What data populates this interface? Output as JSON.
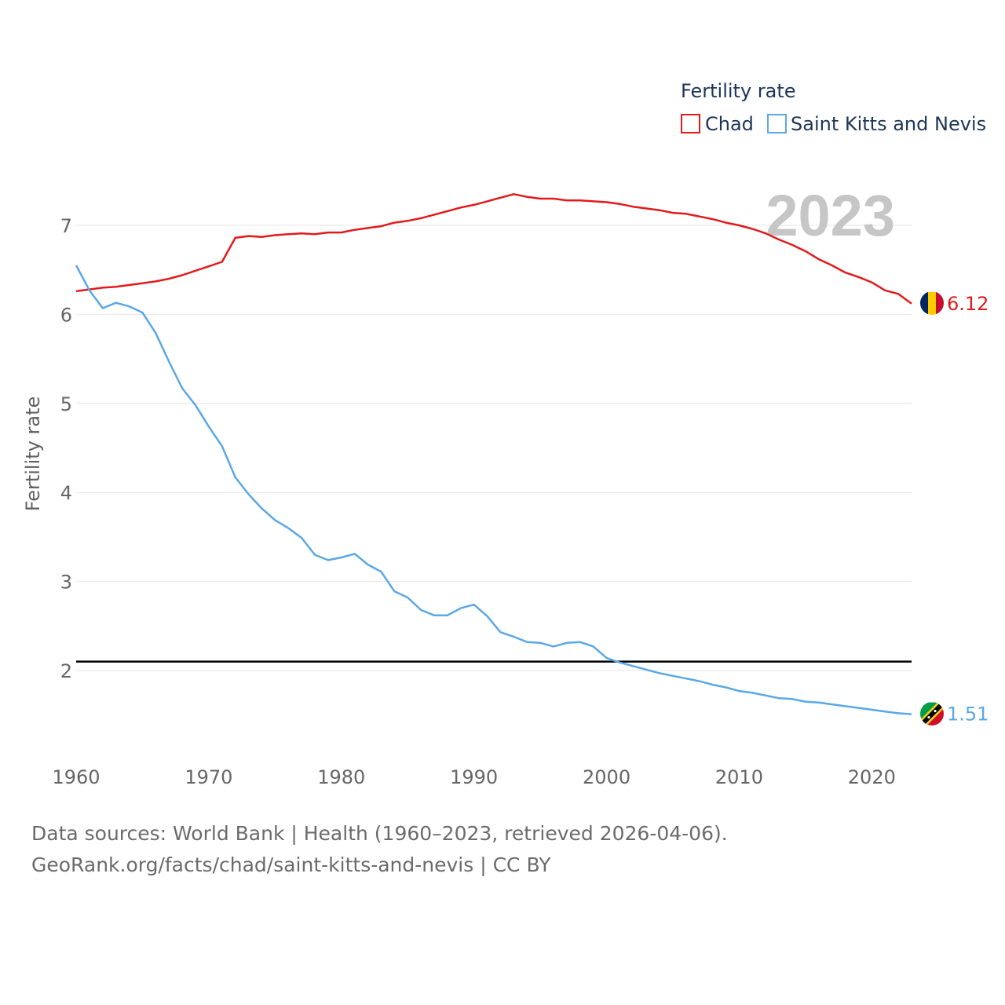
{
  "chart_data": {
    "type": "line",
    "legend_title": "Fertility rate",
    "ylabel": "Fertility rate",
    "xlabel": "",
    "year_label": "2023",
    "x_range": [
      1960,
      2023
    ],
    "ylim": [
      1.0,
      7.6
    ],
    "y_ticks": [
      2,
      3,
      4,
      5,
      6,
      7
    ],
    "y_tick_labels": [
      "2",
      "3",
      "4",
      "5",
      "6",
      "7"
    ],
    "x_ticks": [
      1960,
      1970,
      1980,
      1990,
      2000,
      2010,
      2020
    ],
    "x_tick_labels": [
      "1960",
      "1970",
      "1980",
      "1990",
      "2000",
      "2010",
      "2020"
    ],
    "reference_line": 2.1,
    "legend_placement": "top-right",
    "grid": true,
    "x": [
      1960,
      1961,
      1962,
      1963,
      1964,
      1965,
      1966,
      1967,
      1968,
      1969,
      1970,
      1971,
      1972,
      1973,
      1974,
      1975,
      1976,
      1977,
      1978,
      1979,
      1980,
      1981,
      1982,
      1983,
      1984,
      1985,
      1986,
      1987,
      1988,
      1989,
      1990,
      1991,
      1992,
      1993,
      1994,
      1995,
      1996,
      1997,
      1998,
      1999,
      2000,
      2001,
      2002,
      2003,
      2004,
      2005,
      2006,
      2007,
      2008,
      2009,
      2010,
      2011,
      2012,
      2013,
      2014,
      2015,
      2016,
      2017,
      2018,
      2019,
      2020,
      2021,
      2022,
      2023
    ],
    "series": [
      {
        "name": "Chad",
        "color": "#e31a1c",
        "end_label": "6.12",
        "flag": "chad-flag",
        "values": [
          6.26,
          6.28,
          6.3,
          6.31,
          6.33,
          6.35,
          6.37,
          6.4,
          6.44,
          6.49,
          6.54,
          6.59,
          6.86,
          6.88,
          6.87,
          6.89,
          6.9,
          6.91,
          6.9,
          6.92,
          6.92,
          6.95,
          6.97,
          6.99,
          7.03,
          7.05,
          7.08,
          7.12,
          7.16,
          7.2,
          7.23,
          7.27,
          7.31,
          7.35,
          7.32,
          7.3,
          7.3,
          7.28,
          7.28,
          7.27,
          7.26,
          7.24,
          7.21,
          7.19,
          7.17,
          7.14,
          7.13,
          7.1,
          7.07,
          7.03,
          7.0,
          6.96,
          6.91,
          6.84,
          6.78,
          6.71,
          6.62,
          6.55,
          6.47,
          6.42,
          6.36,
          6.27,
          6.23,
          6.12
        ]
      },
      {
        "name": "Saint Kitts and Nevis",
        "color": "#5aa8e6",
        "end_label": "1.51",
        "flag": "saint-kitts-and-nevis-flag",
        "values": [
          6.55,
          6.27,
          6.07,
          6.13,
          6.09,
          6.02,
          5.79,
          5.47,
          5.17,
          4.98,
          4.74,
          4.52,
          4.17,
          3.98,
          3.82,
          3.69,
          3.6,
          3.49,
          3.3,
          3.24,
          3.27,
          3.31,
          3.19,
          3.11,
          2.89,
          2.82,
          2.68,
          2.62,
          2.62,
          2.7,
          2.74,
          2.61,
          2.43,
          2.38,
          2.32,
          2.31,
          2.27,
          2.31,
          2.32,
          2.27,
          2.14,
          2.09,
          2.05,
          2.01,
          1.97,
          1.94,
          1.91,
          1.88,
          1.84,
          1.81,
          1.77,
          1.75,
          1.72,
          1.69,
          1.68,
          1.65,
          1.64,
          1.62,
          1.6,
          1.58,
          1.56,
          1.54,
          1.52,
          1.51
        ]
      }
    ]
  },
  "footer": {
    "source_line": "Data sources: World Bank | Health (1960–2023, retrieved 2026-04-06).",
    "credit_line": "GeoRank.org/facts/chad/saint-kitts-and-nevis | CC BY"
  }
}
